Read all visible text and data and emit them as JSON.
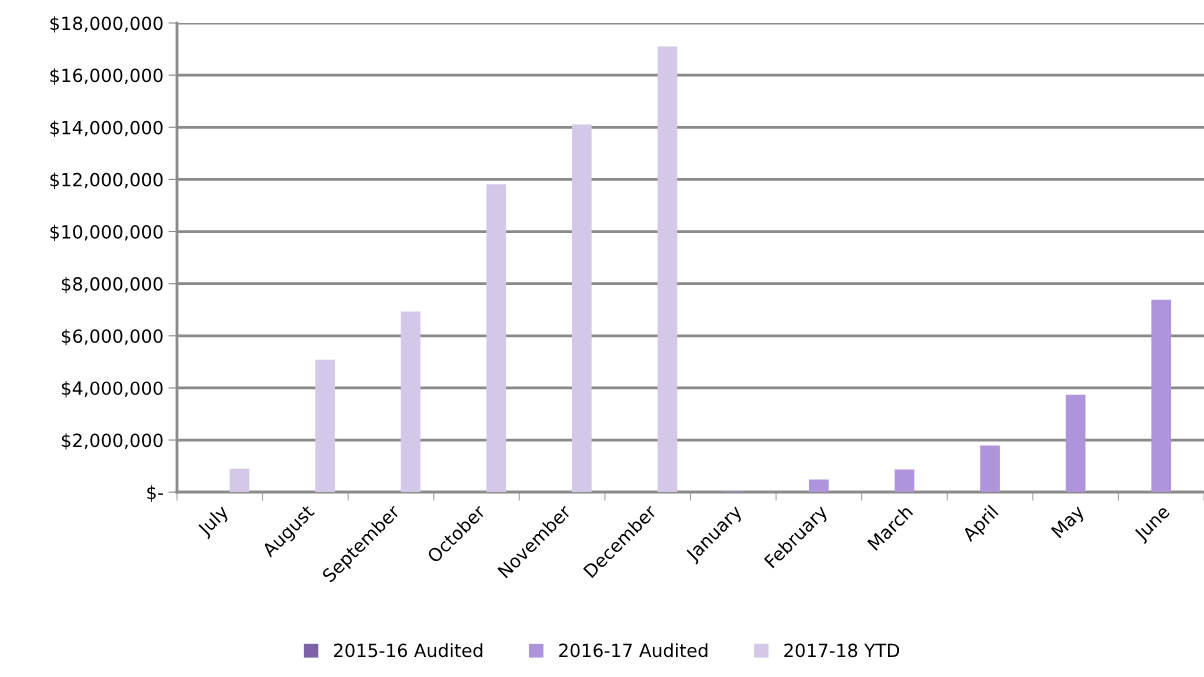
{
  "chart_data": {
    "type": "bar",
    "categories": [
      "July",
      "August",
      "September",
      "October",
      "November",
      "December",
      "January",
      "February",
      "March",
      "April",
      "May",
      "June"
    ],
    "series": [
      {
        "name": "2015-16 Audited",
        "color": "#7d62a8",
        "values": [
          null,
          null,
          null,
          null,
          null,
          null,
          null,
          null,
          null,
          null,
          null,
          null
        ]
      },
      {
        "name": "2016-17 Audited",
        "color": "#ae94da",
        "values": [
          null,
          null,
          null,
          null,
          null,
          null,
          30000,
          490000,
          870000,
          1790000,
          3740000,
          7380000
        ]
      },
      {
        "name": "2017-18 YTD",
        "color": "#d3c8e8",
        "values": [
          900000,
          5080000,
          6930000,
          11810000,
          14110000,
          17100000,
          null,
          null,
          null,
          null,
          null,
          null
        ]
      }
    ],
    "ylim": [
      0,
      18000000
    ],
    "yticks": [
      {
        "value": 0,
        "label": "$-"
      },
      {
        "value": 2000000,
        "label": "$2,000,000"
      },
      {
        "value": 4000000,
        "label": "$4,000,000"
      },
      {
        "value": 6000000,
        "label": "$6,000,000"
      },
      {
        "value": 8000000,
        "label": "$8,000,000"
      },
      {
        "value": 10000000,
        "label": "$10,000,000"
      },
      {
        "value": 12000000,
        "label": "$12,000,000"
      },
      {
        "value": 14000000,
        "label": "$14,000,000"
      },
      {
        "value": 16000000,
        "label": "$16,000,000"
      },
      {
        "value": 18000000,
        "label": "$18,000,000"
      }
    ],
    "grid": "y",
    "legend": "bottom"
  }
}
